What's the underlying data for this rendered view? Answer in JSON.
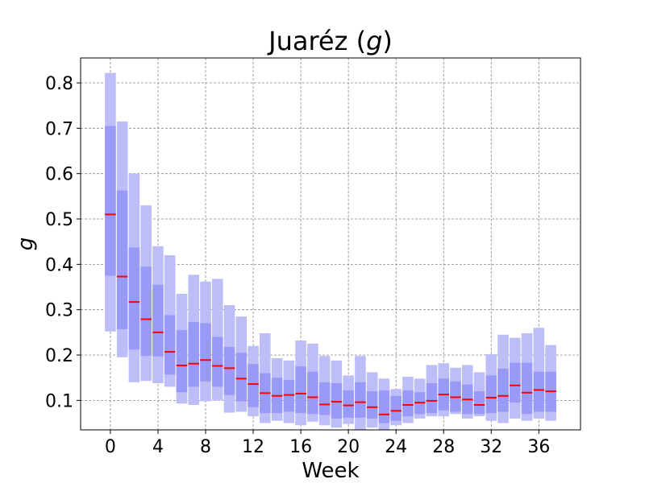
{
  "chart_data": {
    "type": "box",
    "title": "Juaréz (g)",
    "title_main": "Juaréz (",
    "title_var": "g",
    "title_close": ")",
    "xlabel": "Week",
    "ylabel": "g",
    "xlim": [
      -2.5,
      39.5
    ],
    "ylim": [
      0.035,
      0.855
    ],
    "x_ticks": [
      0,
      4,
      8,
      12,
      16,
      20,
      24,
      28,
      32,
      36
    ],
    "y_ticks": [
      0.1,
      0.2,
      0.3,
      0.4,
      0.5,
      0.6,
      0.7,
      0.8
    ],
    "grid": true,
    "colors": {
      "outer": "#bdbdf8",
      "inner": "#9999f8",
      "median": "#ff0000"
    },
    "weeks": [
      0,
      1,
      2,
      3,
      4,
      5,
      6,
      7,
      8,
      9,
      10,
      11,
      12,
      13,
      14,
      15,
      16,
      17,
      18,
      19,
      20,
      21,
      22,
      23,
      24,
      25,
      26,
      27,
      28,
      29,
      30,
      31,
      32,
      33,
      34,
      35,
      36,
      37
    ],
    "outer_low": [
      0.252,
      0.195,
      0.14,
      0.143,
      0.138,
      0.13,
      0.093,
      0.09,
      0.098,
      0.1,
      0.073,
      0.075,
      0.065,
      0.05,
      0.055,
      0.05,
      0.045,
      0.053,
      0.045,
      0.04,
      0.048,
      0.035,
      0.04,
      0.035,
      0.045,
      0.05,
      0.06,
      0.065,
      0.065,
      0.07,
      0.06,
      0.065,
      0.055,
      0.05,
      0.06,
      0.055,
      0.06,
      0.055
    ],
    "outer_high": [
      0.822,
      0.715,
      0.6,
      0.53,
      0.44,
      0.42,
      0.335,
      0.377,
      0.362,
      0.368,
      0.31,
      0.285,
      0.22,
      0.248,
      0.193,
      0.188,
      0.232,
      0.225,
      0.198,
      0.188,
      0.155,
      0.198,
      0.162,
      0.148,
      0.125,
      0.152,
      0.148,
      0.178,
      0.182,
      0.172,
      0.178,
      0.162,
      0.202,
      0.245,
      0.238,
      0.248,
      0.26,
      0.222
    ],
    "inner_low": [
      0.375,
      0.257,
      0.212,
      0.198,
      0.197,
      0.157,
      0.118,
      0.13,
      0.142,
      0.13,
      0.112,
      0.098,
      0.085,
      0.072,
      0.072,
      0.075,
      0.072,
      0.07,
      0.068,
      0.06,
      0.062,
      0.062,
      0.06,
      0.05,
      0.055,
      0.065,
      0.07,
      0.072,
      0.078,
      0.075,
      0.07,
      0.07,
      0.072,
      0.075,
      0.095,
      0.07,
      0.075,
      0.075
    ],
    "inner_high": [
      0.705,
      0.563,
      0.437,
      0.395,
      0.355,
      0.288,
      0.255,
      0.273,
      0.27,
      0.24,
      0.218,
      0.205,
      0.18,
      0.16,
      0.15,
      0.145,
      0.175,
      0.163,
      0.14,
      0.138,
      0.122,
      0.14,
      0.12,
      0.122,
      0.11,
      0.122,
      0.118,
      0.138,
      0.148,
      0.142,
      0.135,
      0.12,
      0.155,
      0.17,
      0.183,
      0.183,
      0.163,
      0.163
    ],
    "median": [
      0.51,
      0.373,
      0.317,
      0.279,
      0.25,
      0.207,
      0.177,
      0.181,
      0.189,
      0.176,
      0.171,
      0.148,
      0.136,
      0.116,
      0.11,
      0.112,
      0.115,
      0.107,
      0.091,
      0.097,
      0.089,
      0.096,
      0.085,
      0.069,
      0.077,
      0.09,
      0.095,
      0.099,
      0.113,
      0.107,
      0.102,
      0.09,
      0.106,
      0.11,
      0.133,
      0.117,
      0.123,
      0.12
    ]
  }
}
